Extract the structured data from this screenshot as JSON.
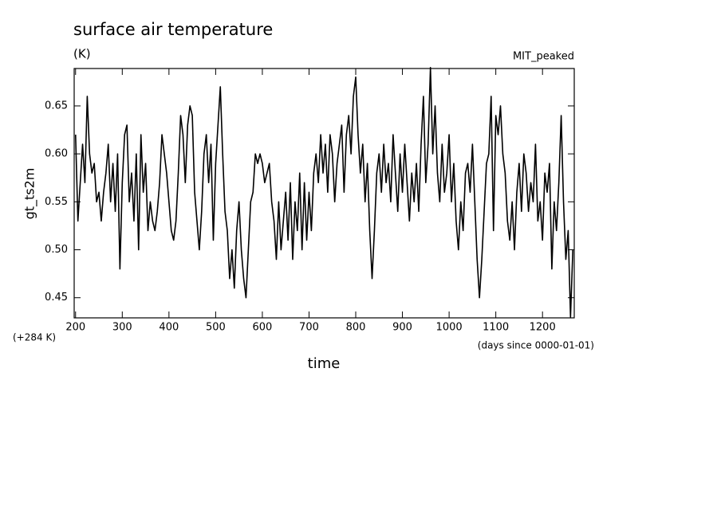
{
  "chart_data": {
    "type": "line",
    "title": "surface air temperature",
    "subtitle": "(K)",
    "annotation": "MIT_peaked",
    "y_label": "gt_ts2m",
    "y_offset_label": "(+284 K)",
    "x_label": "time",
    "x_units": "(days since 0000-01-01)",
    "color": "#000000",
    "x": [
      200,
      205,
      210,
      215,
      220,
      225,
      230,
      235,
      240,
      245,
      250,
      255,
      260,
      265,
      270,
      275,
      280,
      285,
      290,
      295,
      300,
      305,
      310,
      315,
      320,
      325,
      330,
      335,
      340,
      345,
      350,
      355,
      360,
      365,
      370,
      375,
      380,
      385,
      390,
      395,
      400,
      405,
      410,
      415,
      420,
      425,
      430,
      435,
      440,
      445,
      450,
      455,
      460,
      465,
      470,
      475,
      480,
      485,
      490,
      495,
      500,
      505,
      510,
      515,
      520,
      525,
      530,
      535,
      540,
      545,
      550,
      555,
      560,
      565,
      570,
      575,
      580,
      585,
      590,
      595,
      600,
      605,
      610,
      615,
      620,
      625,
      630,
      635,
      640,
      645,
      650,
      655,
      660,
      665,
      670,
      675,
      680,
      685,
      690,
      695,
      700,
      705,
      710,
      715,
      720,
      725,
      730,
      735,
      740,
      745,
      750,
      755,
      760,
      765,
      770,
      775,
      780,
      785,
      790,
      795,
      800,
      805,
      810,
      815,
      820,
      825,
      830,
      835,
      840,
      845,
      850,
      855,
      860,
      865,
      870,
      875,
      880,
      885,
      890,
      895,
      900,
      905,
      910,
      915,
      920,
      925,
      930,
      935,
      940,
      945,
      950,
      955,
      960,
      965,
      970,
      975,
      980,
      985,
      990,
      995,
      1000,
      1005,
      1010,
      1015,
      1020,
      1025,
      1030,
      1035,
      1040,
      1045,
      1050,
      1055,
      1060,
      1065,
      1070,
      1075,
      1080,
      1085,
      1090,
      1095,
      1100,
      1105,
      1110,
      1115,
      1120,
      1125,
      1130,
      1135,
      1140,
      1145,
      1150,
      1155,
      1160,
      1165,
      1170,
      1175,
      1180,
      1185,
      1190,
      1195,
      1200,
      1205,
      1210,
      1215,
      1220,
      1225,
      1230,
      1235,
      1240,
      1245,
      1250,
      1255,
      1260,
      1265
    ],
    "values": [
      0.62,
      0.53,
      0.57,
      0.61,
      0.57,
      0.66,
      0.6,
      0.58,
      0.59,
      0.55,
      0.56,
      0.53,
      0.56,
      0.58,
      0.61,
      0.55,
      0.59,
      0.54,
      0.6,
      0.48,
      0.57,
      0.62,
      0.63,
      0.55,
      0.58,
      0.53,
      0.6,
      0.5,
      0.62,
      0.56,
      0.59,
      0.52,
      0.55,
      0.53,
      0.52,
      0.54,
      0.57,
      0.62,
      0.6,
      0.58,
      0.55,
      0.52,
      0.51,
      0.53,
      0.58,
      0.64,
      0.62,
      0.57,
      0.63,
      0.65,
      0.64,
      0.56,
      0.53,
      0.5,
      0.54,
      0.6,
      0.62,
      0.57,
      0.61,
      0.51,
      0.59,
      0.63,
      0.67,
      0.6,
      0.54,
      0.52,
      0.47,
      0.5,
      0.46,
      0.52,
      0.55,
      0.5,
      0.47,
      0.45,
      0.5,
      0.55,
      0.56,
      0.6,
      0.59,
      0.6,
      0.59,
      0.57,
      0.58,
      0.59,
      0.55,
      0.53,
      0.49,
      0.55,
      0.5,
      0.53,
      0.56,
      0.51,
      0.57,
      0.49,
      0.55,
      0.52,
      0.58,
      0.5,
      0.57,
      0.51,
      0.56,
      0.52,
      0.58,
      0.6,
      0.57,
      0.62,
      0.58,
      0.61,
      0.56,
      0.62,
      0.6,
      0.55,
      0.59,
      0.61,
      0.63,
      0.56,
      0.62,
      0.64,
      0.6,
      0.66,
      0.68,
      0.62,
      0.58,
      0.61,
      0.55,
      0.59,
      0.52,
      0.47,
      0.52,
      0.58,
      0.6,
      0.56,
      0.61,
      0.57,
      0.59,
      0.55,
      0.62,
      0.58,
      0.54,
      0.6,
      0.56,
      0.61,
      0.57,
      0.53,
      0.58,
      0.55,
      0.59,
      0.54,
      0.61,
      0.66,
      0.57,
      0.61,
      0.69,
      0.6,
      0.65,
      0.58,
      0.55,
      0.61,
      0.56,
      0.58,
      0.62,
      0.55,
      0.59,
      0.53,
      0.5,
      0.55,
      0.52,
      0.58,
      0.59,
      0.56,
      0.61,
      0.55,
      0.49,
      0.45,
      0.49,
      0.54,
      0.59,
      0.6,
      0.66,
      0.52,
      0.64,
      0.62,
      0.65,
      0.6,
      0.58,
      0.53,
      0.51,
      0.55,
      0.5,
      0.56,
      0.59,
      0.54,
      0.6,
      0.58,
      0.54,
      0.57,
      0.55,
      0.61,
      0.53,
      0.55,
      0.51,
      0.58,
      0.56,
      0.59,
      0.48,
      0.55,
      0.52,
      0.57,
      0.64,
      0.55,
      0.49,
      0.52,
      0.43,
      0.5
    ],
    "xlim": [
      197,
      1268
    ],
    "ylim": [
      0.429,
      0.689
    ],
    "xticks": [
      200,
      300,
      400,
      500,
      600,
      700,
      800,
      900,
      1000,
      1100,
      1200
    ],
    "yticks": [
      0.45,
      {
        "value": 0.5,
        "label": "0.50"
      },
      0.55,
      {
        "value": 0.6,
        "label": "0.60"
      },
      0.65
    ]
  }
}
